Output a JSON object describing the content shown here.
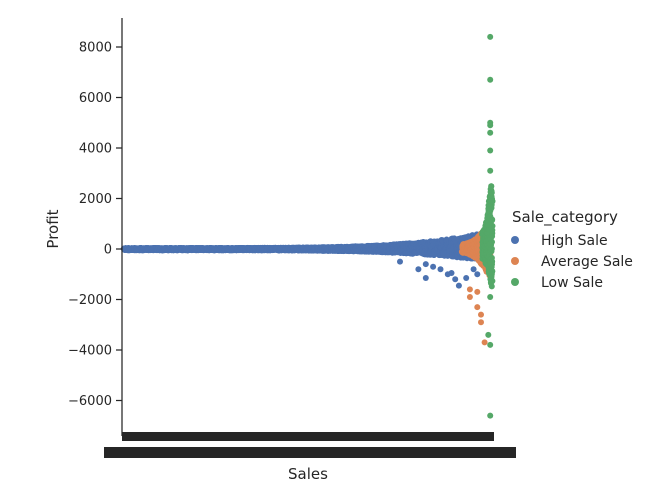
{
  "chart_data": {
    "type": "scatter",
    "subtype": "categorical strip plot",
    "xlabel": "Sales",
    "ylabel": "Profit",
    "ylim": [
      -7500,
      9000
    ],
    "yticks": [
      -6000,
      -4000,
      -2000,
      0,
      2000,
      4000,
      6000,
      8000
    ],
    "ytick_labels": [
      "−6000",
      "−4000",
      "−2000",
      "0",
      "2000",
      "4000",
      "6000",
      "8000"
    ],
    "x_tick_labels_note": "thousands of overlapping unique Sales category labels rendered as a solid black band",
    "grid": false,
    "legend": {
      "title": "Sale_category",
      "placement": "right",
      "entries": [
        {
          "label": "High Sale",
          "color": "#4c72b0"
        },
        {
          "label": "Average Sale",
          "color": "#dd8452"
        },
        {
          "label": "Low Sale",
          "color": "#55a868"
        }
      ]
    },
    "series": [
      {
        "name": "High Sale",
        "color": "#4c72b0",
        "x_fraction_range": [
          0,
          0.995
        ],
        "profit_band_min": [
          -50,
          -500
        ],
        "profit_band_max": [
          40,
          700
        ],
        "outliers": [
          {
            "x": 0.75,
            "y": -500
          },
          {
            "x": 0.8,
            "y": -800
          },
          {
            "x": 0.82,
            "y": -600
          },
          {
            "x": 0.84,
            "y": -700
          },
          {
            "x": 0.82,
            "y": -1150
          },
          {
            "x": 0.86,
            "y": -800
          },
          {
            "x": 0.88,
            "y": -1000
          },
          {
            "x": 0.89,
            "y": -950
          },
          {
            "x": 0.9,
            "y": -1200
          },
          {
            "x": 0.91,
            "y": -1450
          },
          {
            "x": 0.93,
            "y": -1150
          },
          {
            "x": 0.95,
            "y": -800
          },
          {
            "x": 0.96,
            "y": -1000
          }
        ]
      },
      {
        "name": "Average Sale",
        "color": "#dd8452",
        "x_fraction_range": [
          0.92,
          0.995
        ],
        "profit_band_min": [
          -150,
          -1100
        ],
        "profit_band_max": [
          200,
          1100
        ],
        "outliers": [
          {
            "x": 0.94,
            "y": -1600
          },
          {
            "x": 0.94,
            "y": -1900
          },
          {
            "x": 0.96,
            "y": -1700
          },
          {
            "x": 0.96,
            "y": -2300
          },
          {
            "x": 0.97,
            "y": -2600
          },
          {
            "x": 0.97,
            "y": -2900
          },
          {
            "x": 0.98,
            "y": -3700
          }
        ]
      },
      {
        "name": "Low Sale",
        "color": "#55a868",
        "x_fraction_range": [
          0.975,
          1.0
        ],
        "profit_band_min": [
          -400,
          -1600
        ],
        "profit_band_max": [
          700,
          3100
        ],
        "outliers": [
          {
            "x": 0.995,
            "y": 8400
          },
          {
            "x": 0.995,
            "y": 6700
          },
          {
            "x": 0.995,
            "y": 5000
          },
          {
            "x": 0.995,
            "y": 4900
          },
          {
            "x": 0.995,
            "y": 4600
          },
          {
            "x": 0.995,
            "y": 3900
          },
          {
            "x": 0.995,
            "y": 3100
          },
          {
            "x": 0.995,
            "y": -1900
          },
          {
            "x": 0.99,
            "y": -3400
          },
          {
            "x": 0.995,
            "y": -3800
          },
          {
            "x": 0.995,
            "y": -6600
          }
        ]
      }
    ]
  }
}
